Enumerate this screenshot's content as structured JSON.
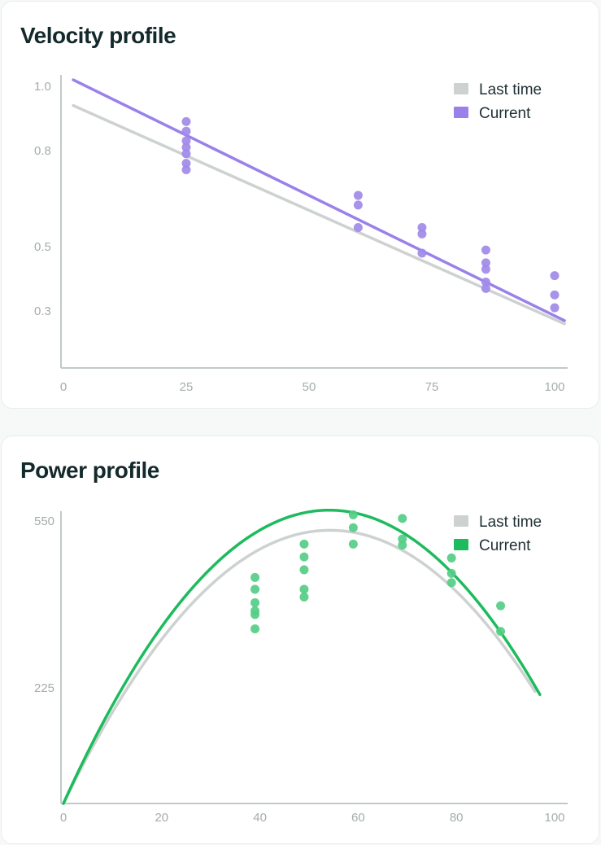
{
  "chart_data": [
    {
      "type": "scatter",
      "title": "Velocity profile",
      "xlabel": "",
      "ylabel": "",
      "xlim": [
        0,
        100
      ],
      "ylim": [
        0.1,
        1.0
      ],
      "x_ticks": [
        0,
        25,
        50,
        75,
        100
      ],
      "y_ticks": [
        0.3,
        0.5,
        0.8,
        1.0
      ],
      "x_tick_labels": [
        "0",
        "25",
        "50",
        "75",
        "100"
      ],
      "y_tick_labels": [
        "0.3",
        "0.5",
        "0.8",
        "1.0"
      ],
      "legend": {
        "position": "top-right",
        "entries": [
          "Last time",
          "Current"
        ]
      },
      "grid": false,
      "lines": [
        {
          "name": "Last time",
          "color": "#cdd2d1",
          "kind": "linear",
          "x_range": [
            2,
            102
          ],
          "points": [
            [
              2,
              0.94
            ],
            [
              102,
              0.26
            ]
          ]
        },
        {
          "name": "Current",
          "color": "#9a81ea",
          "kind": "linear",
          "x_range": [
            2,
            102
          ],
          "points": [
            [
              2,
              1.02
            ],
            [
              102,
              0.27
            ]
          ]
        }
      ],
      "points": {
        "color": "#a18ae9",
        "values": [
          [
            25,
            0.89
          ],
          [
            25,
            0.86
          ],
          [
            25,
            0.83
          ],
          [
            25,
            0.81
          ],
          [
            25,
            0.79
          ],
          [
            25,
            0.76
          ],
          [
            25,
            0.74
          ],
          [
            60,
            0.66
          ],
          [
            60,
            0.63
          ],
          [
            60,
            0.56
          ],
          [
            73,
            0.56
          ],
          [
            73,
            0.54
          ],
          [
            73,
            0.48
          ],
          [
            86,
            0.49
          ],
          [
            86,
            0.45
          ],
          [
            86,
            0.43
          ],
          [
            86,
            0.39
          ],
          [
            86,
            0.37
          ],
          [
            100,
            0.41
          ],
          [
            100,
            0.35
          ],
          [
            100,
            0.31
          ]
        ]
      }
    },
    {
      "type": "scatter",
      "title": "Power profile",
      "xlabel": "",
      "ylabel": "",
      "xlim": [
        0,
        100
      ],
      "ylim": [
        0,
        550
      ],
      "x_ticks": [
        0,
        20,
        40,
        60,
        80,
        100
      ],
      "y_ticks": [
        225,
        550
      ],
      "x_tick_labels": [
        "0",
        "20",
        "40",
        "60",
        "80",
        "100"
      ],
      "y_tick_labels": [
        "225",
        "550"
      ],
      "legend": {
        "position": "top-right",
        "entries": [
          "Last time",
          "Current"
        ]
      },
      "grid": false,
      "lines": [
        {
          "name": "Last time",
          "color": "#cdd2d1",
          "kind": "quadratic",
          "x_range": [
            0,
            96
          ],
          "points": [
            [
              0,
              0
            ],
            [
              64,
              515
            ],
            [
              96,
              218
            ]
          ]
        },
        {
          "name": "Current",
          "color": "#1dbb5d",
          "kind": "quadratic",
          "x_range": [
            0,
            97
          ],
          "points": [
            [
              0,
              0
            ],
            [
              64,
              552
            ],
            [
              97,
              212
            ]
          ]
        }
      ],
      "points": {
        "color": "#55cd85",
        "values": [
          [
            39,
            440
          ],
          [
            39,
            417
          ],
          [
            39,
            391
          ],
          [
            39,
            375
          ],
          [
            39,
            368
          ],
          [
            39,
            340
          ],
          [
            49,
            505
          ],
          [
            49,
            480
          ],
          [
            49,
            455
          ],
          [
            49,
            417
          ],
          [
            49,
            402
          ],
          [
            59,
            562
          ],
          [
            59,
            537
          ],
          [
            59,
            505
          ],
          [
            69,
            555
          ],
          [
            69,
            515
          ],
          [
            69,
            503
          ],
          [
            79,
            478
          ],
          [
            79,
            448
          ],
          [
            79,
            430
          ],
          [
            89,
            385
          ],
          [
            89,
            335
          ]
        ]
      }
    }
  ]
}
